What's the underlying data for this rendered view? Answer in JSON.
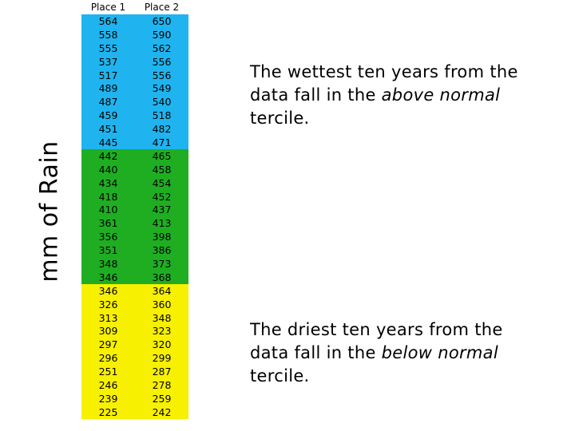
{
  "ylabel": "mm of Rain",
  "table": {
    "headers": [
      "Place 1",
      "Place 2"
    ],
    "rows": [
      [
        "564",
        "650"
      ],
      [
        "558",
        "590"
      ],
      [
        "555",
        "562"
      ],
      [
        "537",
        "556"
      ],
      [
        "517",
        "556"
      ],
      [
        "489",
        "549"
      ],
      [
        "487",
        "540"
      ],
      [
        "459",
        "518"
      ],
      [
        "451",
        "482"
      ],
      [
        "445",
        "471"
      ],
      [
        "442",
        "465"
      ],
      [
        "440",
        "458"
      ],
      [
        "434",
        "454"
      ],
      [
        "418",
        "452"
      ],
      [
        "410",
        "437"
      ],
      [
        "361",
        "413"
      ],
      [
        "356",
        "398"
      ],
      [
        "351",
        "386"
      ],
      [
        "348",
        "373"
      ],
      [
        "346",
        "368"
      ],
      [
        "346",
        "364"
      ],
      [
        "326",
        "360"
      ],
      [
        "313",
        "348"
      ],
      [
        "309",
        "323"
      ],
      [
        "297",
        "320"
      ],
      [
        "296",
        "299"
      ],
      [
        "251",
        "287"
      ],
      [
        "246",
        "278"
      ],
      [
        "239",
        "259"
      ],
      [
        "225",
        "242"
      ]
    ],
    "band_colors": {
      "upper": "#1fb4ef",
      "middle": "#1fae22",
      "lower": "#f7f000"
    }
  },
  "notes": {
    "wettest": {
      "before": "The wettest ten years from the data fall in the ",
      "emphasis": "above normal",
      "after": " tercile."
    },
    "driest": {
      "before": "The driest ten years from the data fall in the ",
      "emphasis": "below normal",
      "after": " tercile."
    }
  }
}
